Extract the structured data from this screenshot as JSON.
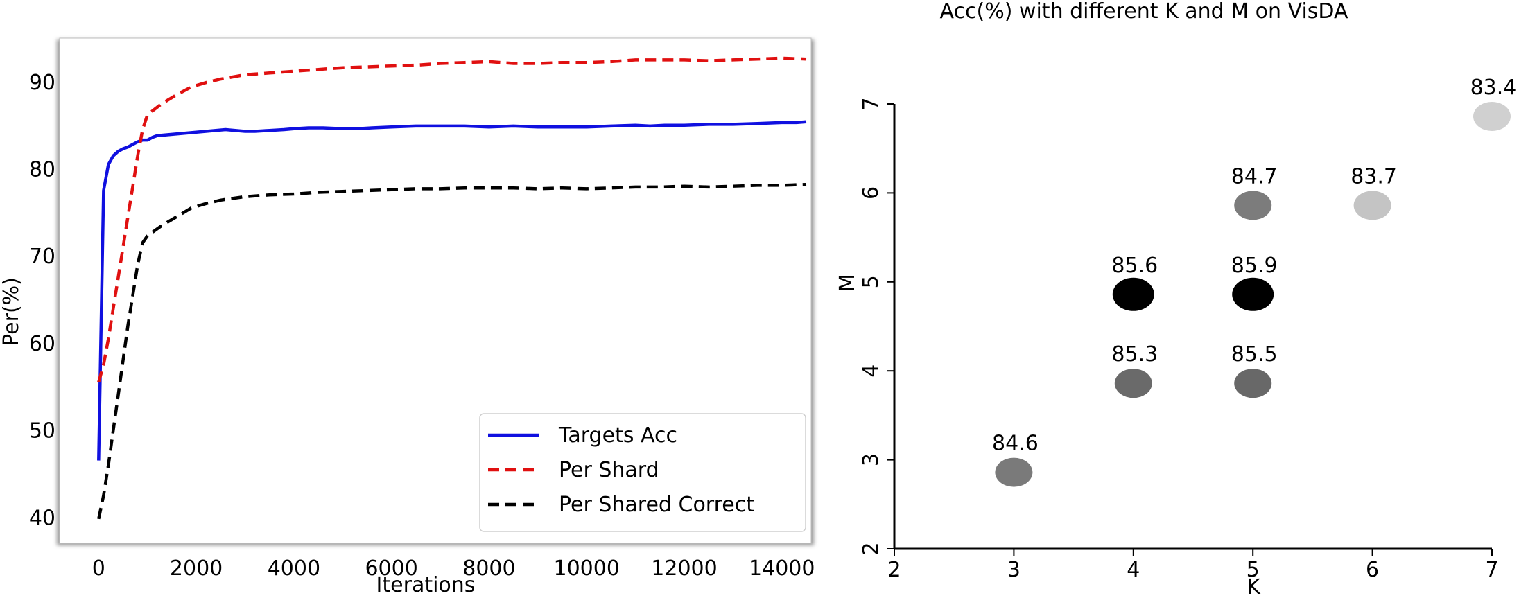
{
  "chart_data": [
    {
      "type": "line",
      "title": "",
      "xlabel": "Iterations",
      "ylabel": "Per(%)",
      "xlim": [
        -800,
        14600
      ],
      "ylim": [
        37,
        95
      ],
      "xticks": [
        0,
        2000,
        4000,
        6000,
        8000,
        10000,
        12000,
        14000
      ],
      "yticks": [
        40,
        50,
        60,
        70,
        80,
        90
      ],
      "xtick_labels": [
        "0",
        "2000",
        "4000",
        "6000",
        "8000",
        "10000",
        "12000",
        "14000"
      ],
      "ytick_labels": [
        "40",
        "50",
        "60",
        "70",
        "80",
        "90"
      ],
      "legend_position": "bottom-right",
      "series": [
        {
          "name": "Targets Acc",
          "color": "#1010e0",
          "style": "solid",
          "x": [
            0,
            100,
            200,
            300,
            400,
            500,
            600,
            700,
            800,
            900,
            1000,
            1100,
            1200,
            1400,
            1600,
            1800,
            2000,
            2200,
            2400,
            2600,
            2800,
            3000,
            3200,
            3500,
            3800,
            4000,
            4300,
            4600,
            5000,
            5300,
            5600,
            6000,
            6500,
            7000,
            7500,
            8000,
            8500,
            9000,
            9500,
            10000,
            10500,
            11000,
            11300,
            11600,
            12000,
            12500,
            13000,
            13500,
            14000,
            14300,
            14500
          ],
          "y": [
            46.5,
            77.5,
            80.5,
            81.5,
            82.0,
            82.3,
            82.5,
            82.8,
            83.1,
            83.3,
            83.3,
            83.6,
            83.8,
            83.9,
            84.0,
            84.1,
            84.2,
            84.3,
            84.4,
            84.5,
            84.4,
            84.3,
            84.3,
            84.4,
            84.5,
            84.6,
            84.7,
            84.7,
            84.6,
            84.6,
            84.7,
            84.8,
            84.9,
            84.9,
            84.9,
            84.8,
            84.9,
            84.8,
            84.8,
            84.8,
            84.9,
            85.0,
            84.9,
            85.0,
            85.0,
            85.1,
            85.1,
            85.2,
            85.3,
            85.3,
            85.4
          ]
        },
        {
          "name": "Per Shard",
          "color": "#e01010",
          "style": "dashed",
          "x": [
            0,
            100,
            200,
            300,
            400,
            500,
            600,
            700,
            800,
            900,
            1000,
            1300,
            1600,
            1900,
            2200,
            2500,
            3000,
            3500,
            4000,
            4500,
            5000,
            5500,
            6000,
            6500,
            7000,
            7500,
            8000,
            8500,
            9000,
            9500,
            10000,
            10500,
            11000,
            11500,
            12000,
            12500,
            13000,
            13500,
            14000,
            14500
          ],
          "y": [
            55.5,
            57.5,
            60.5,
            64.0,
            67.5,
            71.0,
            74.5,
            78.0,
            81.5,
            84.5,
            86.2,
            87.5,
            88.5,
            89.4,
            89.9,
            90.3,
            90.8,
            91.0,
            91.2,
            91.4,
            91.6,
            91.7,
            91.8,
            91.9,
            92.1,
            92.2,
            92.3,
            92.1,
            92.1,
            92.2,
            92.2,
            92.3,
            92.5,
            92.5,
            92.5,
            92.4,
            92.5,
            92.6,
            92.7,
            92.6
          ]
        },
        {
          "name": "Per Shared Correct",
          "color": "#000000",
          "style": "dashed",
          "x": [
            0,
            100,
            200,
            300,
            400,
            500,
            600,
            700,
            800,
            900,
            1000,
            1300,
            1600,
            1900,
            2200,
            2500,
            3000,
            3500,
            4000,
            4500,
            5000,
            5500,
            6000,
            6500,
            7000,
            7500,
            8000,
            8500,
            9000,
            9500,
            10000,
            10500,
            11000,
            11500,
            12000,
            12500,
            13000,
            13500,
            14000,
            14500
          ],
          "y": [
            39.8,
            42.5,
            46.0,
            50.0,
            54.0,
            58.0,
            62.0,
            65.5,
            69.0,
            71.5,
            72.3,
            73.5,
            74.5,
            75.5,
            76.0,
            76.4,
            76.8,
            77.0,
            77.1,
            77.3,
            77.4,
            77.5,
            77.6,
            77.7,
            77.7,
            77.8,
            77.8,
            77.8,
            77.7,
            77.8,
            77.7,
            77.8,
            77.9,
            77.9,
            78.0,
            77.9,
            78.0,
            78.1,
            78.1,
            78.2
          ]
        }
      ]
    },
    {
      "type": "scatter",
      "title": "Acc(%) with different K and M on VisDA",
      "xlabel": "K",
      "ylabel": "M",
      "xlim": [
        2,
        7
      ],
      "ylim": [
        2,
        7
      ],
      "xticks": [
        2,
        3,
        4,
        5,
        6,
        7
      ],
      "yticks": [
        2,
        3,
        4,
        5,
        6,
        7
      ],
      "xtick_labels": [
        "2",
        "3",
        "4",
        "5",
        "6",
        "7"
      ],
      "ytick_labels": [
        "2",
        "3",
        "4",
        "5",
        "6",
        "7"
      ],
      "points": [
        {
          "k": 3,
          "m": 3,
          "acc": 84.6,
          "label": "84.6",
          "color": "#7a7a7a"
        },
        {
          "k": 4,
          "m": 4,
          "acc": 85.3,
          "label": "85.3",
          "color": "#6a6a6a"
        },
        {
          "k": 5,
          "m": 4,
          "acc": 85.5,
          "label": "85.5",
          "color": "#686868"
        },
        {
          "k": 4,
          "m": 5,
          "acc": 85.6,
          "label": "85.6",
          "color": "#000000"
        },
        {
          "k": 5,
          "m": 5,
          "acc": 85.9,
          "label": "85.9",
          "color": "#000000"
        },
        {
          "k": 5,
          "m": 6,
          "acc": 84.7,
          "label": "84.7",
          "color": "#7c7c7c"
        },
        {
          "k": 6,
          "m": 6,
          "acc": 83.7,
          "label": "83.7",
          "color": "#c4c4c4"
        },
        {
          "k": 7,
          "m": 7,
          "acc": 83.4,
          "label": "83.4",
          "color": "#d0d0d0"
        }
      ]
    }
  ]
}
